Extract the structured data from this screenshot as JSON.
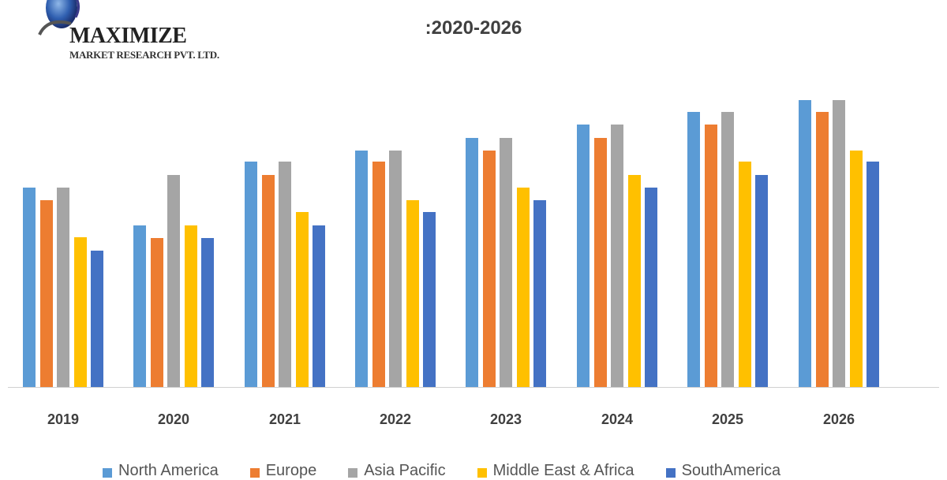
{
  "logo": {
    "name": "MAXIMIZE",
    "subtitle": "MARKET RESEARCH PVT. LTD."
  },
  "title": {
    "line1": "",
    "line2": ":2020-2026"
  },
  "chart_data": {
    "type": "bar",
    "title": ":2020-2026",
    "xlabel": "",
    "ylabel": "",
    "categories": [
      "2019",
      "2020",
      "2021",
      "2022",
      "2023",
      "2024",
      "2025",
      "2026"
    ],
    "series": [
      {
        "name": "North America",
        "color": "#5B9BD5",
        "values": [
          253,
          205,
          286,
          300,
          316,
          333,
          349,
          364
        ]
      },
      {
        "name": "Europe",
        "color": "#ED7D31",
        "values": [
          237,
          189,
          269,
          286,
          300,
          316,
          333,
          349
        ]
      },
      {
        "name": "Asia Pacific",
        "color": "#A5A5A5",
        "values": [
          253,
          269,
          286,
          300,
          316,
          333,
          349,
          364
        ]
      },
      {
        "name": "Middle East & Africa",
        "color": "#FFC000",
        "values": [
          190,
          205,
          222,
          237,
          253,
          269,
          286,
          300
        ]
      },
      {
        "name": "SouthAmerica",
        "color": "#4472C4",
        "values": [
          173,
          189,
          205,
          222,
          237,
          253,
          269,
          286
        ]
      }
    ],
    "ylim": [
      0,
      400
    ],
    "grid": false,
    "legend_position": "bottom"
  },
  "legend": {
    "items": [
      {
        "label": "North America",
        "color": "#5B9BD5"
      },
      {
        "label": "Europe",
        "color": "#ED7D31"
      },
      {
        "label": "Asia Pacific",
        "color": "#A5A5A5"
      },
      {
        "label": "Middle East & Africa",
        "color": "#FFC000"
      },
      {
        "label": "SouthAmerica",
        "color": "#4472C4"
      }
    ]
  }
}
